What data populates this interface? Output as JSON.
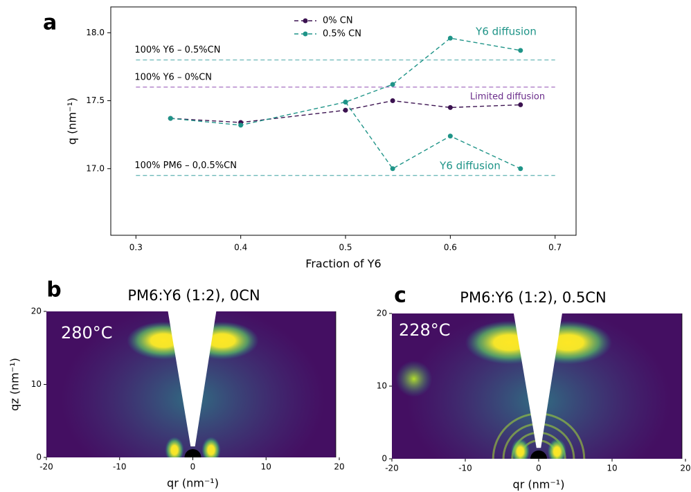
{
  "chart_data": [
    {
      "type": "line",
      "panel_label": "a",
      "xlabel": "Fraction of Y6",
      "ylabel": "q (nm⁻¹)",
      "xlim": [
        0.276,
        0.72
      ],
      "ylim": [
        16.51,
        18.19
      ],
      "xticks": [
        0.3,
        0.4,
        0.5,
        0.6,
        0.7
      ],
      "yticks": [
        {
          "value": 17,
          "label": "17.0"
        },
        17.5,
        {
          "value": 18,
          "label": "18.0"
        }
      ],
      "legend": "upper center",
      "series": [
        {
          "name": "0% CN",
          "color": "#3b1250",
          "x": [
            0.333,
            0.4,
            0.5,
            0.545,
            0.6,
            0.667
          ],
          "values": [
            17.37,
            17.34,
            17.43,
            17.5,
            17.45,
            17.47
          ]
        },
        {
          "name": "0.5% CN",
          "color": "#1f9488",
          "x": [
            0.333,
            0.4,
            0.5,
            0.545,
            0.6,
            0.667,
            null,
            0.5,
            0.545,
            0.6,
            0.667
          ],
          "values": [
            17.37,
            17.32,
            17.49,
            17.62,
            17.96,
            17.87,
            null,
            17.49,
            17.0,
            17.24,
            17.0
          ]
        }
      ],
      "reference_lines": [
        {
          "label": "100% Y6 – 0.5%CN",
          "value": 17.8,
          "color": "#6cb8b8"
        },
        {
          "label": "100% Y6 – 0%CN",
          "value": 17.6,
          "color": "#a66fc0"
        },
        {
          "label": "100% PM6 – 0,0.5%CN",
          "value": 16.95,
          "color": "#6cb8b8"
        }
      ],
      "annotations": [
        {
          "text": "Y6 diffusion",
          "color": "#1f9488"
        },
        {
          "text": "Limited  diffusion",
          "color": "#6a2c8a"
        },
        {
          "text": "Y6 diffusion",
          "color": "#1f9488"
        }
      ]
    },
    {
      "type": "image",
      "panel_label": "b",
      "title": "PM6:Y6 (1:2), 0CN",
      "annotation": "280°C",
      "xlabel": "qr (nm⁻¹)",
      "ylabel": "qz (nm⁻¹)",
      "xlim": [
        -20,
        20
      ],
      "ylim": [
        0,
        20
      ],
      "xticks": [
        -20,
        -10,
        0,
        10,
        20
      ],
      "yticks": [
        0,
        10,
        20
      ]
    },
    {
      "type": "image",
      "panel_label": "c",
      "title": "PM6:Y6 (1:2), 0.5CN",
      "annotation": "228°C",
      "xlabel": "qr (nm⁻¹)",
      "xlim": [
        -20,
        20
      ],
      "ylim": [
        0,
        20
      ],
      "xticks": [
        -20,
        -10,
        0,
        10,
        20
      ],
      "yticks": [
        0,
        10,
        20
      ]
    }
  ]
}
